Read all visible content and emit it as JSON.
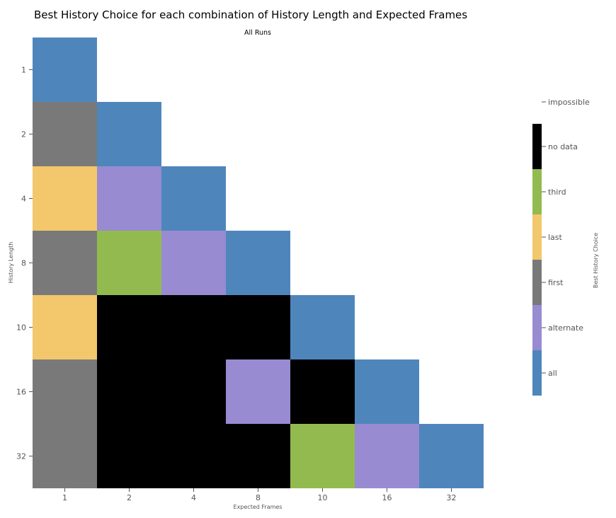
{
  "chart_data": {
    "type": "heatmap",
    "title": "Best History Choice for each combination of History Length and Expected Frames",
    "subtitle": "All Runs",
    "xlabel": "Expected Frames",
    "ylabel": "History Length",
    "legend_title": "Best History Choice",
    "legend_position": "right",
    "x_categories": [
      "1",
      "2",
      "4",
      "8",
      "10",
      "16",
      "32"
    ],
    "y_categories": [
      "1",
      "2",
      "4",
      "8",
      "10",
      "16",
      "32"
    ],
    "legend": {
      "impossible": "impossible",
      "categories": [
        {
          "key": "no_data",
          "label": "no data",
          "color": "#000000"
        },
        {
          "key": "third",
          "label": "third",
          "color": "#93ba4f"
        },
        {
          "key": "last",
          "label": "last",
          "color": "#f3c76b"
        },
        {
          "key": "first",
          "label": "first",
          "color": "#797979"
        },
        {
          "key": "alternate",
          "label": "alternate",
          "color": "#988bd2"
        },
        {
          "key": "all",
          "label": "all",
          "color": "#4e86bc"
        }
      ]
    },
    "cells": [
      {
        "y": "1",
        "values": [
          "all",
          null,
          null,
          null,
          null,
          null,
          null
        ]
      },
      {
        "y": "2",
        "values": [
          "first",
          "all",
          null,
          null,
          null,
          null,
          null
        ]
      },
      {
        "y": "4",
        "values": [
          "last",
          "alternate",
          "all",
          null,
          null,
          null,
          null
        ]
      },
      {
        "y": "8",
        "values": [
          "first",
          "third",
          "alternate",
          "all",
          null,
          null,
          null
        ]
      },
      {
        "y": "10",
        "values": [
          "last",
          "no_data",
          "no_data",
          "no_data",
          "all",
          null,
          null
        ]
      },
      {
        "y": "16",
        "values": [
          "first",
          "no_data",
          "no_data",
          "alternate",
          "no_data",
          "all",
          null
        ]
      },
      {
        "y": "32",
        "values": [
          "first",
          "no_data",
          "no_data",
          "no_data",
          "third",
          "alternate",
          "all"
        ]
      }
    ]
  }
}
